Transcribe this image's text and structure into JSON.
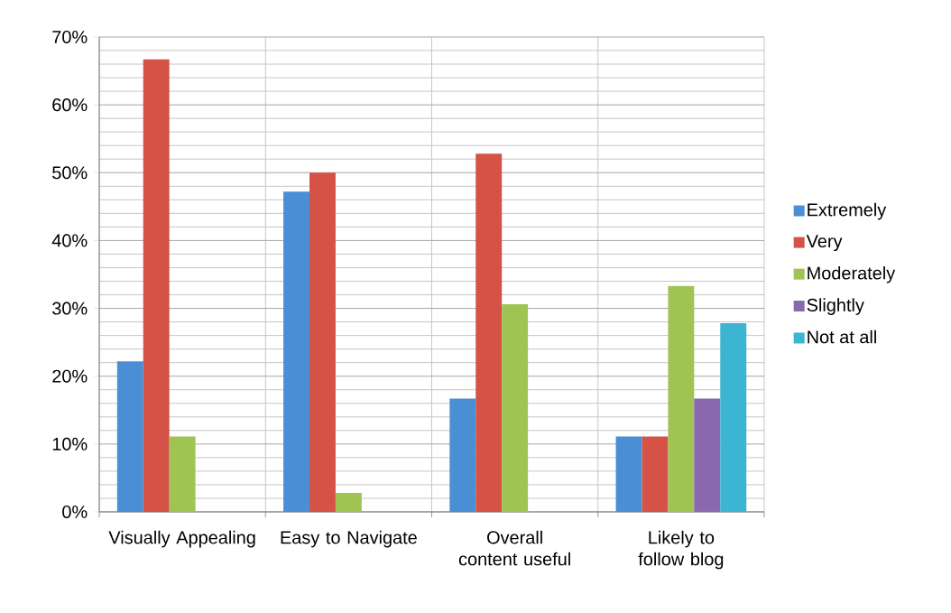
{
  "chart_data": {
    "type": "bar",
    "categories": [
      "Visually Appealing",
      "Easy to Navigate",
      "Overall content useful",
      "Likely to follow blog"
    ],
    "series": [
      {
        "name": "Extremely",
        "color": "#4a8fd6",
        "values": [
          22.2,
          47.2,
          16.7,
          11.1
        ]
      },
      {
        "name": "Very",
        "color": "#d45246",
        "values": [
          66.7,
          50.0,
          52.8,
          11.1
        ]
      },
      {
        "name": "Moderately",
        "color": "#9fc454",
        "values": [
          11.1,
          2.8,
          30.6,
          33.3
        ]
      },
      {
        "name": "Slightly",
        "color": "#8a68ae",
        "values": [
          null,
          null,
          null,
          16.7
        ]
      },
      {
        "name": "Not at all",
        "color": "#3bb5d2",
        "values": [
          null,
          null,
          null,
          27.8
        ]
      }
    ],
    "ylim": [
      0,
      70
    ],
    "yticks": [
      {
        "value": 0,
        "label": "0%"
      },
      {
        "value": 10,
        "label": "10%"
      },
      {
        "value": 20,
        "label": "20%"
      },
      {
        "value": 30,
        "label": "30%"
      },
      {
        "value": 40,
        "label": "40%"
      },
      {
        "value": 50,
        "label": "50%"
      },
      {
        "value": 60,
        "label": "60%"
      },
      {
        "value": 70,
        "label": "70%"
      }
    ],
    "grid": true,
    "legend": "right"
  }
}
